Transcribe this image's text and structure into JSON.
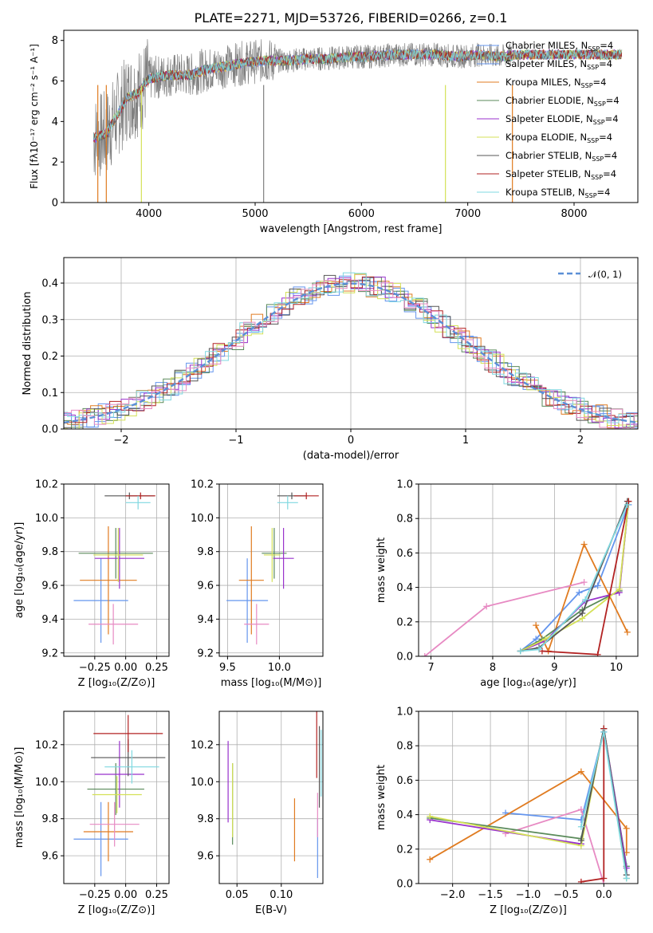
{
  "figure": {
    "title": "PLATE=2271, MJD=53726, FIBERID=0266, z=0.1"
  },
  "legend_spectrum": [
    {
      "label": "Chabrier MILES, N",
      "sub": "SSP",
      "tail": "=4",
      "color": "#6495ed"
    },
    {
      "label": "Salpeter MILES, N",
      "sub": "SSP",
      "tail": "=4",
      "color": "#6495ed"
    },
    {
      "label": "Kroupa MILES, N",
      "sub": "SSP",
      "tail": "=4",
      "color": "#e07b20"
    },
    {
      "label": "Chabrier ELODIE, N",
      "sub": "SSP",
      "tail": "=4",
      "color": "#5a8a5a"
    },
    {
      "label": "Salpeter ELODIE, N",
      "sub": "SSP",
      "tail": "=4",
      "color": "#9932cc"
    },
    {
      "label": "Kroupa ELODIE, N",
      "sub": "SSP",
      "tail": "=4",
      "color": "#d4e157"
    },
    {
      "label": "Chabrier STELIB, N",
      "sub": "SSP",
      "tail": "=4",
      "color": "#555555"
    },
    {
      "label": "Salpeter STELIB, N",
      "sub": "SSP",
      "tail": "=4",
      "color": "#b22222"
    },
    {
      "label": "Kroupa STELIB, N",
      "sub": "SSP",
      "tail": "=4",
      "color": "#7fd8e0"
    }
  ],
  "chart_data": [
    {
      "id": "spectrum",
      "type": "line",
      "xlabel": "wavelength [Angstrom, rest frame]",
      "ylabel": "Flux [fλ10⁻¹⁷ erg cm⁻² s⁻¹ A⁻¹]",
      "xlim": [
        3200,
        8600
      ],
      "ylim": [
        0,
        8.5
      ],
      "xticks": [
        "4000",
        "5000",
        "6000",
        "7000",
        "8000"
      ],
      "yticks": [
        "0",
        "2",
        "4",
        "6",
        "8"
      ],
      "data_color": "#808080",
      "x": [
        3500,
        3600,
        3700,
        3800,
        3900,
        4000,
        4100,
        4200,
        4300,
        4400,
        4500,
        4700,
        4900,
        5100,
        5300,
        5500,
        5700,
        5900,
        6100,
        6300,
        6500,
        6700,
        6900,
        7100,
        7300,
        7500
      ],
      "model": [
        3.2,
        3.4,
        4.3,
        5.2,
        5.4,
        6.1,
        6.2,
        6.3,
        6.3,
        6.3,
        6.5,
        6.7,
        6.9,
        7.0,
        7.0,
        7.1,
        7.1,
        7.2,
        7.2,
        7.3,
        7.3,
        7.3,
        7.2,
        7.3,
        7.2,
        7.3
      ]
    },
    {
      "id": "residuals",
      "type": "histogram",
      "xlabel": "(data-model)/error",
      "ylabel": "Normed distribution",
      "xlim": [
        -2.5,
        2.5
      ],
      "ylim": [
        0,
        0.47
      ],
      "xticks": [
        "−2",
        "−1",
        "0",
        "1",
        "2"
      ],
      "yticks": [
        "0.0",
        "0.1",
        "0.2",
        "0.3",
        "0.4"
      ],
      "reference": {
        "label": "𝒩(0, 1)",
        "mean": 0,
        "sigma": 1,
        "color": "#5b8fd6"
      }
    },
    {
      "id": "age-vs-Z",
      "type": "scatter",
      "xlabel": "Z [log₁₀(Z/Z⊙)]",
      "ylabel": "age [log₁₀(age/yr)]",
      "xlim": [
        -0.5,
        0.35
      ],
      "ylim": [
        9.18,
        10.2
      ],
      "xticks": [
        "−0.25",
        "0.00",
        "0.25"
      ],
      "yticks": [
        "9.2",
        "9.4",
        "9.6",
        "9.8",
        "10.0",
        "10.2"
      ],
      "points": [
        {
          "x": -0.2,
          "y": 9.51,
          "xerr": 0.22,
          "yerr": 0.25,
          "color": "#6495ed"
        },
        {
          "x": -0.14,
          "y": 9.63,
          "xerr": 0.23,
          "yerr": 0.32,
          "color": "#e07b20"
        },
        {
          "x": -0.1,
          "y": 9.37,
          "xerr": 0.2,
          "yerr": 0.12,
          "color": "#e78ac3"
        },
        {
          "x": -0.08,
          "y": 9.79,
          "xerr": 0.3,
          "yerr": 0.15,
          "color": "#5a8a5a"
        },
        {
          "x": -0.05,
          "y": 9.76,
          "xerr": 0.2,
          "yerr": 0.18,
          "color": "#9932cc"
        },
        {
          "x": -0.06,
          "y": 9.78,
          "xerr": 0.2,
          "yerr": 0.16,
          "color": "#d4e157"
        },
        {
          "x": 0.03,
          "y": 10.13,
          "xerr": 0.2,
          "yerr": 0.02,
          "color": "#555555"
        },
        {
          "x": 0.12,
          "y": 10.13,
          "xerr": 0.12,
          "yerr": 0.02,
          "color": "#b22222"
        },
        {
          "x": 0.1,
          "y": 10.09,
          "xerr": 0.1,
          "yerr": 0.04,
          "color": "#7fd8e0"
        }
      ]
    },
    {
      "id": "age-vs-mass",
      "type": "scatter",
      "xlabel": "mass [log₁₀(M/M⊙)]",
      "ylabel": "",
      "xlim": [
        9.42,
        10.42
      ],
      "ylim": [
        9.18,
        10.2
      ],
      "xticks": [
        "9.5",
        "10.0"
      ],
      "yticks": [
        "9.2",
        "9.4",
        "9.6",
        "9.8",
        "10.0",
        "10.2"
      ],
      "points": [
        {
          "x": 9.69,
          "y": 9.51,
          "xerr": 0.2,
          "yerr": 0.25,
          "color": "#6495ed"
        },
        {
          "x": 9.73,
          "y": 9.63,
          "xerr": 0.12,
          "yerr": 0.32,
          "color": "#e07b20"
        },
        {
          "x": 9.78,
          "y": 9.37,
          "xerr": 0.12,
          "yerr": 0.12,
          "color": "#e78ac3"
        },
        {
          "x": 9.95,
          "y": 9.79,
          "xerr": 0.12,
          "yerr": 0.15,
          "color": "#5a8a5a"
        },
        {
          "x": 10.04,
          "y": 9.76,
          "xerr": 0.1,
          "yerr": 0.18,
          "color": "#9932cc"
        },
        {
          "x": 9.93,
          "y": 9.78,
          "xerr": 0.08,
          "yerr": 0.16,
          "color": "#d4e157"
        },
        {
          "x": 10.12,
          "y": 10.13,
          "xerr": 0.14,
          "yerr": 0.02,
          "color": "#555555"
        },
        {
          "x": 10.26,
          "y": 10.13,
          "xerr": 0.12,
          "yerr": 0.02,
          "color": "#b22222"
        },
        {
          "x": 10.08,
          "y": 10.09,
          "xerr": 0.1,
          "yerr": 0.04,
          "color": "#7fd8e0"
        }
      ]
    },
    {
      "id": "massweight-vs-age",
      "type": "line",
      "xlabel": "age [log₁₀(age/yr)]",
      "ylabel": "mass weight",
      "xlim": [
        6.8,
        10.35
      ],
      "ylim": [
        0,
        1.0
      ],
      "xticks": [
        "7",
        "8",
        "9",
        "10"
      ],
      "yticks": [
        "0.0",
        "0.2",
        "0.4",
        "0.6",
        "0.8",
        "1.0"
      ],
      "series": [
        {
          "color": "#6495ed",
          "x": [
            8.45,
            8.7,
            9.4,
            9.7,
            10.2
          ],
          "y": [
            0.03,
            0.1,
            0.37,
            0.41,
            0.88
          ]
        },
        {
          "color": "#e07b20",
          "x": [
            8.7,
            8.9,
            9.48,
            10.18
          ],
          "y": [
            0.18,
            0.03,
            0.65,
            0.14
          ]
        },
        {
          "color": "#e78ac3",
          "x": [
            6.9,
            7.9,
            9.48
          ],
          "y": [
            0.0,
            0.29,
            0.43
          ]
        },
        {
          "color": "#5a8a5a",
          "x": [
            8.45,
            8.8,
            9.45,
            10.05,
            10.2
          ],
          "y": [
            0.03,
            0.1,
            0.27,
            0.38,
            0.9
          ]
        },
        {
          "color": "#9932cc",
          "x": [
            8.45,
            8.85,
            9.5,
            10.05,
            10.2
          ],
          "y": [
            0.03,
            0.09,
            0.32,
            0.37,
            0.9
          ]
        },
        {
          "color": "#d4e157",
          "x": [
            8.45,
            8.85,
            9.45,
            10.05,
            10.2
          ],
          "y": [
            0.03,
            0.1,
            0.22,
            0.39,
            0.9
          ]
        },
        {
          "color": "#555555",
          "x": [
            8.45,
            8.75,
            9.45,
            10.18
          ],
          "y": [
            0.03,
            0.05,
            0.25,
            0.9
          ]
        },
        {
          "color": "#b22222",
          "x": [
            8.8,
            9.7,
            10.2
          ],
          "y": [
            0.03,
            0.01,
            0.9
          ]
        },
        {
          "color": "#7fd8e0",
          "x": [
            8.45,
            8.75,
            9.5,
            10.18
          ],
          "y": [
            0.03,
            0.04,
            0.33,
            0.88
          ]
        }
      ]
    },
    {
      "id": "mass-vs-Z",
      "type": "scatter",
      "xlabel": "Z [log₁₀(Z/Z⊙)]",
      "ylabel": "mass [log₁₀(M/M⊙)]",
      "xlim": [
        -0.5,
        0.35
      ],
      "ylim": [
        9.45,
        10.38
      ],
      "xticks": [
        "−0.25",
        "0.00",
        "0.25"
      ],
      "yticks": [
        "9.6",
        "9.8",
        "10.0",
        "10.2"
      ],
      "points": [
        {
          "x": -0.2,
          "y": 9.69,
          "xerr": 0.22,
          "yerr": 0.2,
          "color": "#6495ed"
        },
        {
          "x": -0.14,
          "y": 9.73,
          "xerr": 0.2,
          "yerr": 0.16,
          "color": "#e07b20"
        },
        {
          "x": -0.09,
          "y": 9.77,
          "xerr": 0.2,
          "yerr": 0.12,
          "color": "#e78ac3"
        },
        {
          "x": -0.08,
          "y": 9.96,
          "xerr": 0.23,
          "yerr": 0.14,
          "color": "#5a8a5a"
        },
        {
          "x": -0.05,
          "y": 10.04,
          "xerr": 0.2,
          "yerr": 0.18,
          "color": "#9932cc"
        },
        {
          "x": -0.07,
          "y": 9.93,
          "xerr": 0.2,
          "yerr": 0.1,
          "color": "#d4e157"
        },
        {
          "x": 0.02,
          "y": 10.13,
          "xerr": 0.3,
          "yerr": 0.1,
          "color": "#555555"
        },
        {
          "x": 0.02,
          "y": 10.26,
          "xerr": 0.28,
          "yerr": 0.1,
          "color": "#b22222"
        },
        {
          "x": 0.05,
          "y": 10.08,
          "xerr": 0.22,
          "yerr": 0.09,
          "color": "#7fd8e0"
        }
      ]
    },
    {
      "id": "mass-vs-EBV",
      "type": "scatter",
      "xlabel": "E(B-V)",
      "ylabel": "",
      "xlim": [
        0.03,
        0.147
      ],
      "ylim": [
        9.45,
        10.38
      ],
      "xticks": [
        "0.05",
        "0.10"
      ],
      "yticks": [
        "9.6",
        "9.8",
        "10.0",
        "10.2"
      ],
      "points": [
        {
          "x": 0.141,
          "y": 9.64,
          "xerr": 0,
          "yerr": 0.16,
          "color": "#6495ed"
        },
        {
          "x": 0.115,
          "y": 9.74,
          "xerr": 0,
          "yerr": 0.17,
          "color": "#e07b20"
        },
        {
          "x": 0.141,
          "y": 9.82,
          "xerr": 0,
          "yerr": 0.12,
          "color": "#e78ac3"
        },
        {
          "x": 0.045,
          "y": 9.88,
          "xerr": 0,
          "yerr": 0.22,
          "color": "#5a8a5a"
        },
        {
          "x": 0.04,
          "y": 10.0,
          "xerr": 0,
          "yerr": 0.22,
          "color": "#9932cc"
        },
        {
          "x": 0.045,
          "y": 9.9,
          "xerr": 0,
          "yerr": 0.2,
          "color": "#d4e157"
        },
        {
          "x": 0.143,
          "y": 10.08,
          "xerr": 0,
          "yerr": 0.22,
          "color": "#555555"
        },
        {
          "x": 0.14,
          "y": 10.2,
          "xerr": 0,
          "yerr": 0.18,
          "color": "#b22222"
        },
        {
          "x": 0.145,
          "y": 10.1,
          "xerr": 0,
          "yerr": 0.18,
          "color": "#7fd8e0"
        }
      ]
    },
    {
      "id": "massweight-vs-Z",
      "type": "line",
      "xlabel": "Z [log₁₀(Z/Z⊙)]",
      "ylabel": "mass weight",
      "xlim": [
        -2.45,
        0.45
      ],
      "ylim": [
        0,
        1.0
      ],
      "xticks": [
        "−2.0",
        "−1.5",
        "−1.0",
        "−0.5",
        "0.0"
      ],
      "yticks": [
        "0.0",
        "0.2",
        "0.4",
        "0.6",
        "0.8",
        "1.0"
      ],
      "series": [
        {
          "color": "#6495ed",
          "x": [
            -1.3,
            -0.3,
            0.0,
            0.3,
            0.3
          ],
          "y": [
            0.41,
            0.37,
            0.88,
            0.1,
            0.03
          ]
        },
        {
          "color": "#e07b20",
          "x": [
            -2.3,
            -0.3,
            0.3,
            0.3
          ],
          "y": [
            0.14,
            0.65,
            0.32,
            0.18
          ]
        },
        {
          "color": "#e78ac3",
          "x": [
            -1.3,
            -0.3,
            0.0
          ],
          "y": [
            0.29,
            0.43,
            0.0
          ]
        },
        {
          "color": "#5a8a5a",
          "x": [
            -2.3,
            -0.3,
            0.0,
            0.3
          ],
          "y": [
            0.38,
            0.26,
            0.9,
            0.1
          ]
        },
        {
          "color": "#9932cc",
          "x": [
            -2.3,
            -0.3,
            0.0,
            0.3
          ],
          "y": [
            0.37,
            0.23,
            0.9,
            0.09
          ]
        },
        {
          "color": "#d4e157",
          "x": [
            -2.3,
            -0.3,
            0.0,
            0.3
          ],
          "y": [
            0.39,
            0.22,
            0.9,
            0.03
          ]
        },
        {
          "color": "#555555",
          "x": [
            -0.3,
            0.0,
            0.3
          ],
          "y": [
            0.25,
            0.9,
            0.05
          ]
        },
        {
          "color": "#b22222",
          "x": [
            -0.3,
            0.0,
            0.0
          ],
          "y": [
            0.01,
            0.03,
            0.9
          ]
        },
        {
          "color": "#7fd8e0",
          "x": [
            -0.3,
            0.0,
            0.3
          ],
          "y": [
            0.33,
            0.88,
            0.03
          ]
        }
      ]
    }
  ]
}
